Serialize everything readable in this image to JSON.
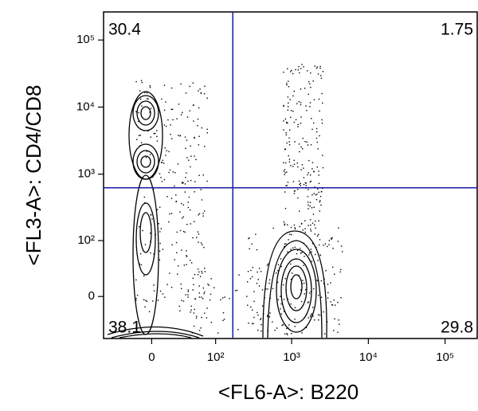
{
  "chart_data": {
    "type": "quadrant",
    "xlabel": "<FL6-A>: B220",
    "ylabel": "<FL3-A>: CD4/CD8",
    "xscale": "biexponential",
    "yscale": "biexponential",
    "xlim": [
      -60,
      262144
    ],
    "ylim": [
      -60,
      262144
    ],
    "xticks": [
      0,
      {
        "value": 100,
        "label": "10²"
      },
      {
        "value": 1000,
        "label": "10³"
      },
      {
        "value": 10000,
        "label": "10⁴"
      },
      {
        "value": 100000,
        "label": "10⁵"
      }
    ],
    "yticks": [
      0,
      {
        "value": 100,
        "label": "10²"
      },
      {
        "value": 1000,
        "label": "10³"
      },
      {
        "value": 10000,
        "label": "10⁴"
      },
      {
        "value": 100000,
        "label": "10⁵"
      }
    ],
    "gate": {
      "x": 170,
      "y": 625,
      "color": "#1a1aa6"
    },
    "quadrants": {
      "top_left": 30.4,
      "top_right": 1.75,
      "bottom_right": 29.8,
      "bottom_left": 38.1
    }
  }
}
